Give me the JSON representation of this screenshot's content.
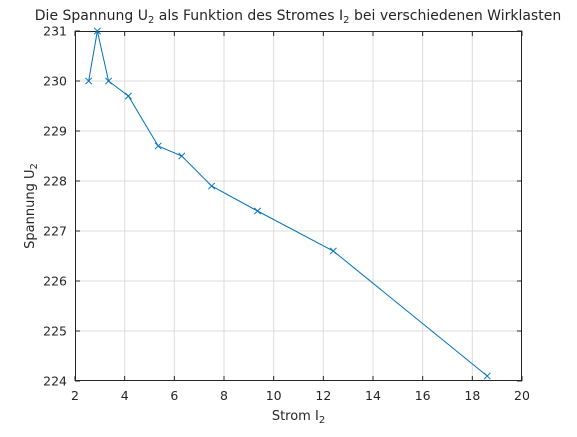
{
  "chart_data": {
    "type": "line",
    "title": {
      "parts": [
        {
          "text": "Die Spannung U",
          "sub": false
        },
        {
          "text": "2",
          "sub": true
        },
        {
          "text": " als Funktion des Stromes I",
          "sub": false
        },
        {
          "text": "2",
          "sub": true
        },
        {
          "text": " bei verschiedenen Wirklasten",
          "sub": false
        }
      ]
    },
    "xlabel": {
      "parts": [
        {
          "text": "Strom I",
          "sub": false
        },
        {
          "text": "2",
          "sub": true
        }
      ]
    },
    "ylabel": {
      "parts": [
        {
          "text": "Spannung U",
          "sub": false
        },
        {
          "text": "2",
          "sub": true
        }
      ]
    },
    "xlim": [
      2,
      20
    ],
    "ylim": [
      224,
      231
    ],
    "xticks": [
      2,
      4,
      6,
      8,
      10,
      12,
      14,
      16,
      18,
      20
    ],
    "yticks": [
      224,
      225,
      226,
      227,
      228,
      229,
      230,
      231
    ],
    "grid": true,
    "series": [
      {
        "marker": "x",
        "color": "#0072BD",
        "x": [
          2.55,
          2.9,
          3.35,
          4.15,
          5.35,
          6.3,
          7.5,
          9.35,
          12.4,
          18.6
        ],
        "y": [
          230.0,
          231.0,
          230.0,
          229.7,
          228.7,
          228.5,
          227.9,
          227.4,
          226.6,
          224.1
        ]
      }
    ]
  }
}
